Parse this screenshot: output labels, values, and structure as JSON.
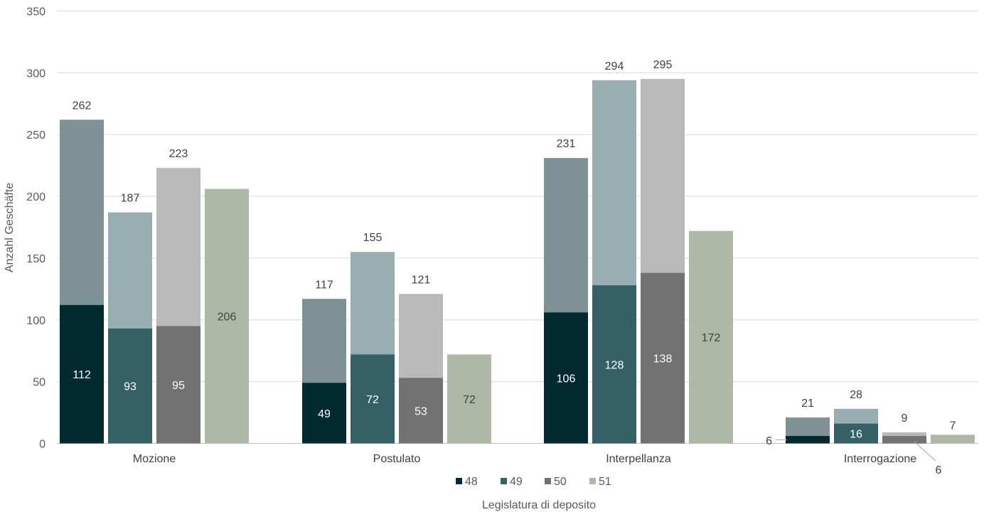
{
  "chart_data": {
    "type": "bar",
    "categories": [
      "Mozione",
      "Postulato",
      "Interpellanza",
      "Interrogazione"
    ],
    "series": [
      {
        "name": "48",
        "totals": [
          262,
          117,
          231,
          21
        ],
        "values": [
          112,
          49,
          106,
          6
        ]
      },
      {
        "name": "49",
        "totals": [
          187,
          155,
          294,
          28
        ],
        "values": [
          93,
          72,
          128,
          16
        ]
      },
      {
        "name": "50",
        "totals": [
          223,
          121,
          295,
          9
        ],
        "values": [
          95,
          53,
          138,
          6
        ]
      },
      {
        "name": "51",
        "totals": [
          206,
          72,
          172,
          7
        ],
        "values": [
          206,
          72,
          172,
          7
        ]
      }
    ],
    "colors": {
      "dark": [
        "#022a30",
        "#356166",
        "#727272",
        "#adb9a6"
      ],
      "light": [
        "#7e9194",
        "#99aeb1",
        "#b9b9b9",
        "#adb9a6"
      ]
    },
    "xlabel": "Legislatura di deposito",
    "ylabel": "Anzahl Geschäfte",
    "ylim": [
      0,
      350
    ],
    "yticks": [
      0,
      50,
      100,
      150,
      200,
      250,
      300,
      350
    ],
    "grid": true,
    "legend": "bottom"
  }
}
